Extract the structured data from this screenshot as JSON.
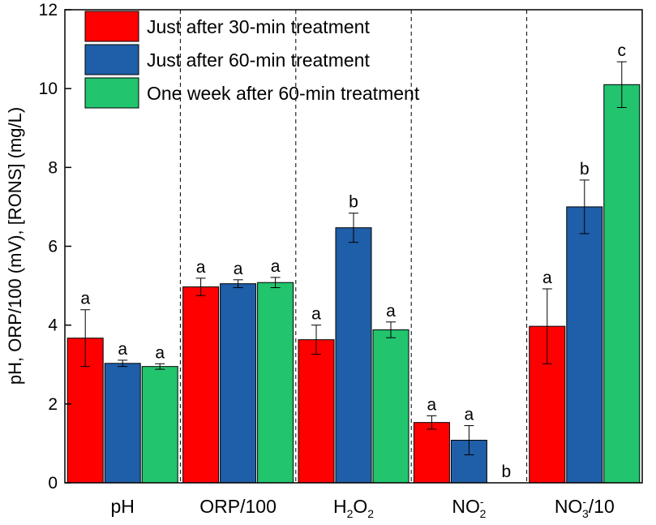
{
  "chart_data": {
    "type": "bar",
    "ylabel": "pH, ORP/100 (mV), [RONS] (mg/L)",
    "xlabel": "",
    "ylim": [
      0,
      12
    ],
    "yticks": [
      0,
      2,
      4,
      6,
      8,
      10,
      12
    ],
    "grid": false,
    "legend_position": "top-left",
    "categories": [
      {
        "main": "pH"
      },
      {
        "main": "ORP/100"
      },
      {
        "main": "H",
        "sub": "2",
        "main2": "O",
        "sub2": "2"
      },
      {
        "main": "NO",
        "sup": "-",
        "sub": "2"
      },
      {
        "main": "NO",
        "sup": "-",
        "sub": "3",
        "main2": "/10"
      }
    ],
    "series": [
      {
        "name": "Just after 30-min treatment",
        "color": "#ff0000",
        "values": [
          3.67,
          4.97,
          3.63,
          1.53,
          3.97
        ],
        "errors": [
          0.72,
          0.22,
          0.37,
          0.17,
          0.95
        ],
        "labels": [
          "a",
          "a",
          "a",
          "a",
          "a"
        ]
      },
      {
        "name": "Just after 60-min treatment",
        "color": "#1f5ea8",
        "values": [
          3.03,
          5.05,
          6.47,
          1.08,
          7.0
        ],
        "errors": [
          0.08,
          0.1,
          0.37,
          0.37,
          0.68
        ],
        "labels": [
          "a",
          "a",
          "b",
          "a",
          "b"
        ]
      },
      {
        "name": "One week after 60-min treatment",
        "color": "#22c46e",
        "values": [
          2.95,
          5.08,
          3.88,
          0.0,
          10.1
        ],
        "errors": [
          0.07,
          0.13,
          0.2,
          0.0,
          0.58
        ],
        "labels": [
          "a",
          "a",
          "a",
          "b",
          "c"
        ]
      }
    ]
  }
}
